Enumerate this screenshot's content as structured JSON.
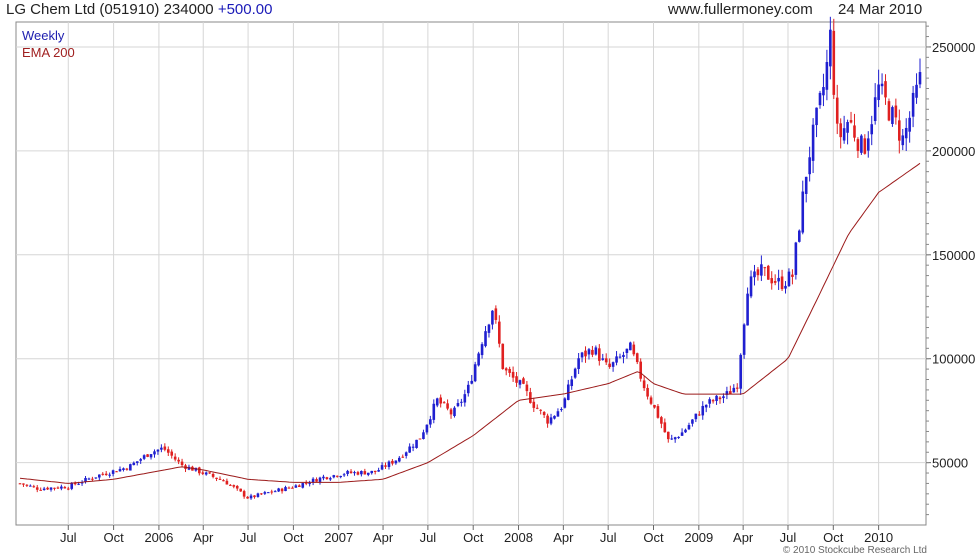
{
  "header": {
    "name_code_price": "LG Chem Ltd (051910) 234000",
    "change": "+500.00",
    "website": "www.fullermoney.com",
    "date": "24 Mar 2010"
  },
  "footer": {
    "copyright": "© 2010 Stockcube Research Ltd"
  },
  "colors": {
    "up": "#1f1fd0",
    "down": "#e02020",
    "ema": "#9b1a1a",
    "grid": "#d6d6d6",
    "frame": "#888888"
  },
  "chart_data": {
    "type": "candlestick",
    "frequency_label": "Weekly",
    "ema_label": "EMA 200",
    "y_ticks": [
      50000,
      100000,
      150000,
      200000,
      250000
    ],
    "y_tick_labels": [
      "50000",
      "100000",
      "150000",
      "200000",
      "250000"
    ],
    "ylim": [
      20000,
      262000
    ],
    "x_tick_labels": [
      "Jul",
      "Oct",
      "2006",
      "Apr",
      "Jul",
      "Oct",
      "2007",
      "Apr",
      "Jul",
      "Oct",
      "2008",
      "Apr",
      "Jul",
      "Oct",
      "2009",
      "Apr",
      "Jul",
      "Oct",
      "2010"
    ],
    "x_tick_dates": [
      "2005-07-01",
      "2005-10-01",
      "2006-01-01",
      "2006-04-01",
      "2006-07-01",
      "2006-10-01",
      "2007-01-01",
      "2007-04-01",
      "2007-07-01",
      "2007-10-01",
      "2008-01-01",
      "2008-04-01",
      "2008-07-01",
      "2008-10-01",
      "2009-01-01",
      "2009-04-01",
      "2009-07-01",
      "2009-10-01",
      "2010-01-01"
    ],
    "x_start": "2005-03-25",
    "x_end": "2010-03-26",
    "close_anchors": [
      [
        "2005-03-25",
        40000
      ],
      [
        "2005-05-01",
        37500
      ],
      [
        "2005-07-01",
        38500
      ],
      [
        "2005-09-01",
        44000
      ],
      [
        "2005-11-01",
        48000
      ],
      [
        "2005-12-15",
        55000
      ],
      [
        "2006-01-10",
        57000
      ],
      [
        "2006-02-15",
        49000
      ],
      [
        "2006-04-01",
        45000
      ],
      [
        "2006-05-15",
        41000
      ],
      [
        "2006-07-01",
        33000
      ],
      [
        "2006-08-01",
        35000
      ],
      [
        "2006-10-01",
        38500
      ],
      [
        "2006-12-01",
        43000
      ],
      [
        "2007-01-15",
        45000
      ],
      [
        "2007-03-15",
        45500
      ],
      [
        "2007-05-01",
        52000
      ],
      [
        "2007-06-15",
        62000
      ],
      [
        "2007-07-20",
        80000
      ],
      [
        "2007-08-20",
        73000
      ],
      [
        "2007-09-20",
        85000
      ],
      [
        "2007-10-20",
        110000
      ],
      [
        "2007-11-10",
        125000
      ],
      [
        "2007-12-01",
        95000
      ],
      [
        "2008-01-10",
        86000
      ],
      [
        "2008-02-01",
        78000
      ],
      [
        "2008-03-01",
        70000
      ],
      [
        "2008-04-01",
        78000
      ],
      [
        "2008-05-01",
        100000
      ],
      [
        "2008-06-01",
        105000
      ],
      [
        "2008-07-01",
        95000
      ],
      [
        "2008-08-15",
        105000
      ],
      [
        "2008-09-15",
        85000
      ],
      [
        "2008-10-15",
        70000
      ],
      [
        "2008-11-01",
        60000
      ],
      [
        "2008-12-01",
        65000
      ],
      [
        "2009-01-15",
        78000
      ],
      [
        "2009-03-01",
        83000
      ],
      [
        "2009-03-20",
        88000
      ],
      [
        "2009-04-10",
        135000
      ],
      [
        "2009-05-10",
        142000
      ],
      [
        "2009-06-15",
        136000
      ],
      [
        "2009-07-10",
        140000
      ],
      [
        "2009-08-10",
        195000
      ],
      [
        "2009-09-15",
        235000
      ],
      [
        "2009-09-25",
        255000
      ],
      [
        "2009-10-10",
        205000
      ],
      [
        "2009-11-01",
        215000
      ],
      [
        "2009-12-01",
        200000
      ],
      [
        "2010-01-01",
        230000
      ],
      [
        "2010-02-01",
        215000
      ],
      [
        "2010-02-20",
        205000
      ],
      [
        "2010-03-26",
        234000
      ]
    ],
    "ema_anchors": [
      [
        "2005-03-25",
        42500
      ],
      [
        "2005-07-01",
        40000
      ],
      [
        "2005-10-01",
        42000
      ],
      [
        "2006-01-01",
        46000
      ],
      [
        "2006-02-15",
        48000
      ],
      [
        "2006-04-01",
        46500
      ],
      [
        "2006-07-01",
        42000
      ],
      [
        "2006-10-01",
        40500
      ],
      [
        "2007-01-01",
        40500
      ],
      [
        "2007-04-01",
        42000
      ],
      [
        "2007-07-01",
        50000
      ],
      [
        "2007-10-01",
        63000
      ],
      [
        "2008-01-01",
        80000
      ],
      [
        "2008-04-01",
        83000
      ],
      [
        "2008-07-01",
        88000
      ],
      [
        "2008-09-01",
        94000
      ],
      [
        "2008-10-01",
        88000
      ],
      [
        "2008-12-01",
        83000
      ],
      [
        "2009-04-01",
        83000
      ],
      [
        "2009-07-01",
        100000
      ],
      [
        "2009-09-01",
        130000
      ],
      [
        "2009-11-01",
        160000
      ],
      [
        "2010-01-01",
        180000
      ],
      [
        "2010-03-26",
        194000
      ]
    ]
  }
}
